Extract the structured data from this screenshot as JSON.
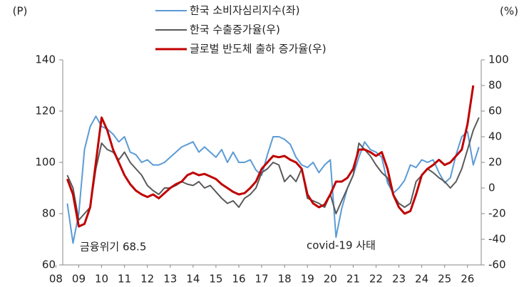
{
  "chart_data": {
    "type": "line",
    "y_label": "(P)",
    "y2_label": "(%)",
    "x": [
      2008.5,
      2008.75,
      2009,
      2009.25,
      2009.5,
      2009.75,
      2010,
      2010.25,
      2010.5,
      2010.75,
      2011,
      2011.25,
      2011.5,
      2011.75,
      2012,
      2012.25,
      2012.5,
      2012.75,
      2013,
      2013.25,
      2013.5,
      2013.75,
      2014,
      2014.25,
      2014.5,
      2014.75,
      2015,
      2015.25,
      2015.5,
      2015.75,
      2016,
      2016.25,
      2016.5,
      2016.75,
      2017,
      2017.25,
      2017.5,
      2017.75,
      2018,
      2018.25,
      2018.5,
      2018.75,
      2019,
      2019.25,
      2019.5,
      2019.75,
      2020,
      2020.25,
      2020.5,
      2020.75,
      2021,
      2021.25,
      2021.5,
      2021.75,
      2022,
      2022.25,
      2022.5,
      2022.75,
      2023,
      2023.25,
      2023.5,
      2023.75,
      2024,
      2024.25,
      2024.5,
      2024.75,
      2025,
      2025.25,
      2025.5,
      2025.75,
      2026,
      2026.25,
      2026.5
    ],
    "series": [
      {
        "name": "한국 소비자심리지수(좌)",
        "color": "#5b9bd5",
        "axis": "y",
        "values": [
          84,
          68.5,
          80,
          105,
          114,
          118,
          114,
          113,
          111,
          108,
          110,
          104,
          103,
          100,
          101,
          99,
          99,
          100,
          102,
          104,
          106,
          107,
          108,
          104,
          106,
          104,
          102,
          105,
          100,
          104,
          100,
          100,
          101,
          97,
          95,
          103,
          110,
          110,
          109,
          107,
          102,
          99,
          98,
          100,
          96,
          99,
          101,
          70.8,
          82,
          90,
          95,
          102,
          108,
          105,
          104,
          102,
          92,
          88,
          90,
          93,
          99,
          98,
          101,
          100,
          101,
          96,
          92,
          94,
          103,
          110,
          112,
          99,
          106
        ]
      },
      {
        "name": "한국 수출증가율(우)",
        "color": "#595959",
        "axis": "y2",
        "values": [
          10,
          0,
          -25,
          -20,
          -15,
          15,
          35,
          30,
          28,
          22,
          28,
          20,
          15,
          10,
          2,
          -2,
          -5,
          0,
          0,
          2,
          5,
          3,
          2,
          5,
          0,
          2,
          -3,
          -8,
          -12,
          -10,
          -15,
          -8,
          -5,
          0,
          12,
          15,
          20,
          18,
          5,
          10,
          5,
          15,
          -8,
          -10,
          -12,
          -15,
          -5,
          -20,
          -10,
          0,
          10,
          35,
          30,
          25,
          18,
          12,
          8,
          -5,
          -12,
          -15,
          -12,
          5,
          10,
          15,
          12,
          8,
          5,
          0,
          5,
          15,
          30,
          45,
          55
        ]
      },
      {
        "name": "글로벌 반도체 출하 증가율(우)",
        "color": "#c00000",
        "axis": "y2",
        "values": [
          7,
          -5,
          -30,
          -28,
          -15,
          20,
          55,
          45,
          30,
          20,
          10,
          3,
          -2,
          -5,
          -7,
          -5,
          -8,
          -4,
          0,
          3,
          5,
          10,
          12,
          10,
          11,
          9,
          7,
          3,
          0,
          -3,
          -5,
          -4,
          0,
          5,
          15,
          20,
          25,
          24,
          25,
          22,
          20,
          15,
          -5,
          -12,
          -15,
          -13,
          -5,
          5,
          5,
          8,
          15,
          30,
          30,
          28,
          25,
          28,
          15,
          -5,
          -15,
          -20,
          -18,
          -5,
          10,
          15,
          18,
          22,
          18,
          20,
          25,
          30,
          50,
          80,
          null
        ]
      }
    ],
    "annotations": [
      "금융위기 68.5",
      "covid-19 사태"
    ],
    "xlim": [
      2008.3,
      2026.6
    ],
    "xticks": [
      {
        "value": 2008,
        "label": "08"
      },
      {
        "value": 2009,
        "label": "09"
      },
      {
        "value": 2010,
        "label": "10"
      },
      {
        "value": 2011,
        "label": "11"
      },
      {
        "value": 2012,
        "label": "12"
      },
      {
        "value": 2013,
        "label": "13"
      },
      {
        "value": 2014,
        "label": "14"
      },
      {
        "value": 2015,
        "label": "15"
      },
      {
        "value": 2016,
        "label": "16"
      },
      {
        "value": 2017,
        "label": "17"
      },
      {
        "value": 2018,
        "label": "18"
      },
      {
        "value": 2019,
        "label": "19"
      },
      {
        "value": 2020,
        "label": "20"
      },
      {
        "value": 2021,
        "label": "21"
      },
      {
        "value": 2022,
        "label": "22"
      },
      {
        "value": 2023,
        "label": "23"
      },
      {
        "value": 2024,
        "label": "24"
      },
      {
        "value": 2025,
        "label": "25"
      },
      {
        "value": 2026,
        "label": "26"
      }
    ],
    "ylim": [
      60,
      140
    ],
    "yticks": [
      60,
      80,
      100,
      120,
      140
    ],
    "y2lim": [
      -60,
      100
    ],
    "y2ticks": [
      -60,
      -40,
      -20,
      0,
      20,
      40,
      60,
      80,
      100
    ],
    "legend": "top",
    "grid": false
  }
}
